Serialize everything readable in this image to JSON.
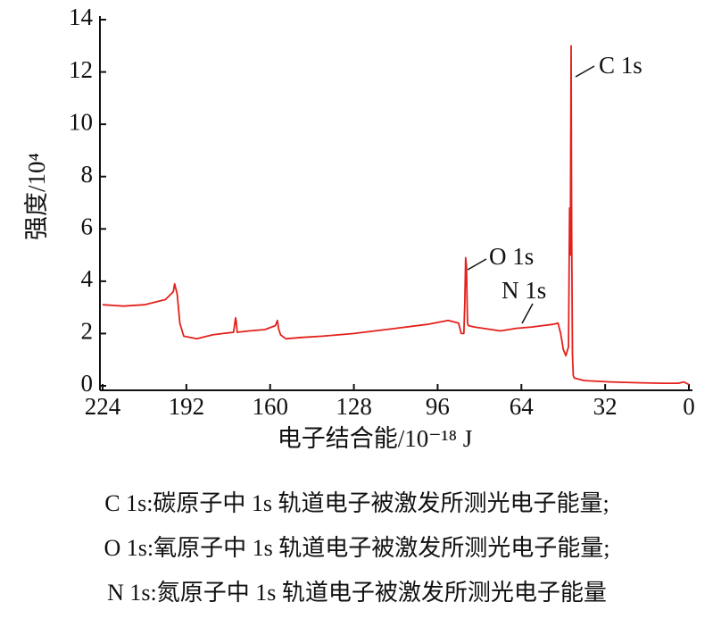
{
  "chart_data": {
    "type": "line",
    "x_label": "电子结合能/10⁻¹⁸ J",
    "y_label": "强度/10⁴",
    "xlim": [
      224,
      0
    ],
    "xticks": [
      224,
      192,
      160,
      128,
      96,
      64,
      32,
      0
    ],
    "ylim": [
      0,
      14
    ],
    "yticks": [
      0,
      2,
      4,
      6,
      8,
      10,
      12,
      14
    ],
    "series": [
      {
        "color": "#e3201b",
        "x": [
          224,
          216,
          208,
          200,
          197,
          196.5,
          195.5,
          194.5,
          193,
          188,
          182,
          178,
          174,
          173.2,
          173,
          172.6,
          168,
          162,
          158,
          157.2,
          156.8,
          156,
          154,
          148,
          140,
          128,
          112,
          100,
          92,
          88,
          87,
          86,
          85.6,
          85.3,
          85,
          84.6,
          84.2,
          82,
          72,
          66,
          60,
          56,
          52,
          50,
          49,
          48,
          47,
          46,
          45.6,
          45.3,
          45,
          44.8,
          44.5,
          44.2,
          43.8,
          40,
          30,
          20,
          10,
          4,
          2,
          0
        ],
        "values": [
          3.1,
          3.05,
          3.1,
          3.3,
          3.6,
          3.9,
          3.5,
          2.4,
          1.9,
          1.8,
          1.95,
          2.0,
          2.05,
          2.6,
          2.5,
          2.05,
          2.1,
          2.15,
          2.3,
          2.5,
          2.2,
          1.95,
          1.8,
          1.85,
          1.9,
          2.0,
          2.2,
          2.35,
          2.5,
          2.4,
          2.0,
          2.0,
          3.2,
          4.9,
          4.6,
          2.4,
          2.3,
          2.25,
          2.1,
          2.2,
          2.25,
          2.3,
          2.35,
          2.4,
          2.0,
          1.4,
          1.15,
          1.5,
          6.8,
          5.0,
          13.0,
          6.0,
          1.2,
          0.4,
          0.3,
          0.2,
          0.15,
          0.12,
          0.1,
          0.1,
          0.15,
          0.05
        ]
      }
    ],
    "annotations": [
      "C 1s",
      "O 1s",
      "N 1s"
    ],
    "caption": [
      "C 1s:碳原子中 1s 轨道电子被激发所测光电子能量;",
      "O 1s:氧原子中 1s 轨道电子被激发所测光电子能量;",
      "N 1s:氮原子中 1s 轨道电子被激发所测光电子能量"
    ]
  }
}
